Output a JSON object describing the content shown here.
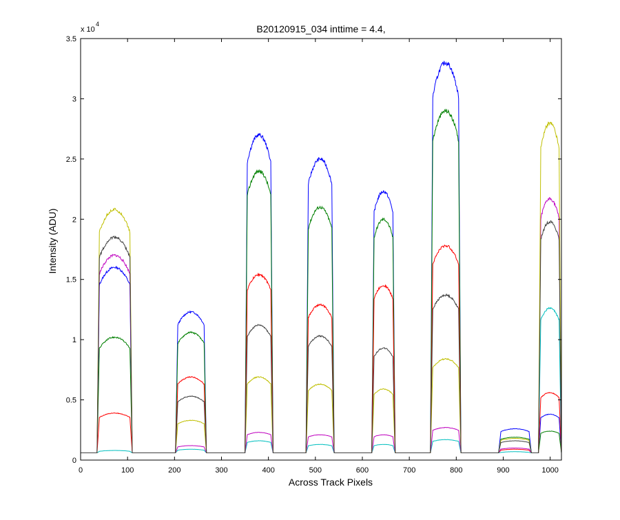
{
  "window": {
    "background": "#ffffff"
  },
  "chart_data": {
    "type": "line",
    "title": "B20120915_034 inttime = 4.4,",
    "xlabel": "Across Track Pixels",
    "ylabel": "Intensity (ADU)",
    "y_multiplier": {
      "base": "x 10",
      "exponent": "4"
    },
    "xlim": [
      0,
      1024
    ],
    "ylim": [
      0,
      35000
    ],
    "x_ticks": [
      0,
      100,
      200,
      300,
      400,
      500,
      600,
      700,
      800,
      900,
      1000
    ],
    "y_ticks": [
      0,
      5000,
      10000,
      15000,
      20000,
      25000,
      30000,
      35000
    ],
    "y_tick_labels": [
      "0",
      "0.5",
      "1",
      "1.5",
      "2",
      "2.5",
      "3",
      "3.5"
    ],
    "grid": false,
    "baseline": 600,
    "segments": [
      [
        35,
        110
      ],
      [
        202,
        268
      ],
      [
        350,
        410
      ],
      [
        480,
        540
      ],
      [
        620,
        670
      ],
      [
        745,
        810
      ],
      [
        890,
        960
      ],
      [
        975,
        1024
      ]
    ],
    "series": [
      {
        "color": "#0000ff",
        "plateaus": [
          16000,
          12300,
          27000,
          25000,
          22300,
          33000,
          2600,
          3800
        ]
      },
      {
        "color": "#007f00",
        "plateaus": [
          10200,
          10600,
          24000,
          21000,
          20000,
          29000,
          1900,
          2400
        ]
      },
      {
        "color": "#ff0000",
        "plateaus": [
          3900,
          6900,
          15400,
          12900,
          14500,
          17800,
          900,
          5600
        ]
      },
      {
        "color": "#00bfbf",
        "plateaus": [
          800,
          900,
          1600,
          1300,
          1300,
          1700,
          700,
          12600
        ]
      },
      {
        "color": "#bf00bf",
        "plateaus": [
          17000,
          1200,
          2300,
          2100,
          2100,
          2700,
          1000,
          21700
        ]
      },
      {
        "color": "#bfbf00",
        "plateaus": [
          20800,
          3300,
          6900,
          6300,
          5900,
          8400,
          1800,
          28000
        ]
      },
      {
        "color": "#3f3f3f",
        "plateaus": [
          18500,
          5300,
          11200,
          10300,
          9300,
          13700,
          1600,
          19800
        ]
      }
    ]
  }
}
